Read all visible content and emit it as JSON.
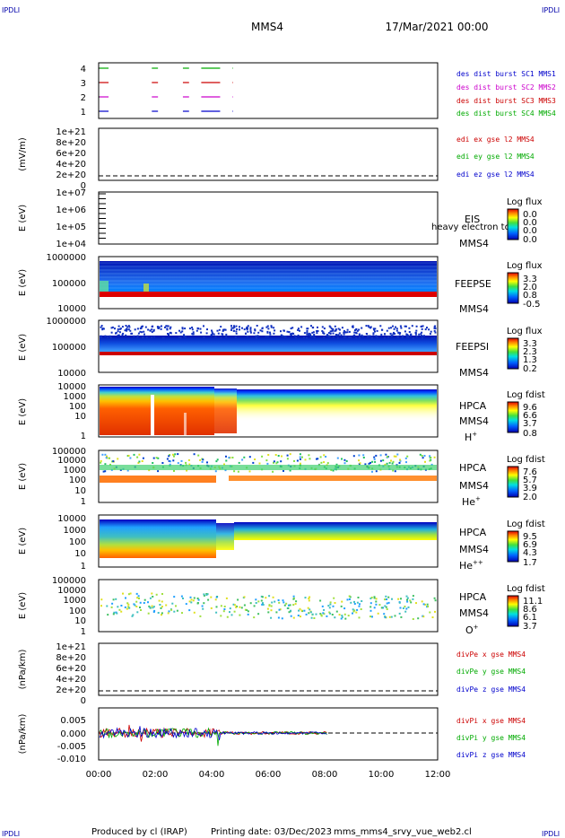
{
  "corner_labels": [
    "IPDLI",
    "IPDLI",
    "IPDLI",
    "IPDLI"
  ],
  "header": {
    "spacecraft": "MMS4",
    "datetime": "17/Mar/2021 00:00"
  },
  "footer": {
    "producer": "Produced by cl (IRAP)",
    "printing_date": "Printing date: 03/Dec/2023",
    "script": "mms_mms4_srvy_vue_web2.cl"
  },
  "colors": {
    "black": "#000000",
    "blue": "#0000cc",
    "red": "#cc0000",
    "green": "#00aa00",
    "magenta": "#cc00cc"
  },
  "chart_data": [
    {
      "type": "line",
      "panel": "des-burst",
      "yticks": [
        "1",
        "2",
        "3",
        "4"
      ],
      "series": [
        {
          "name": "des dist burst SC1 MMS1",
          "color": "#0000cc",
          "level": 1
        },
        {
          "name": "des dist burst SC2 MMS2",
          "color": "#cc00cc",
          "level": 2
        },
        {
          "name": "des dist burst SC3 MMS3",
          "color": "#cc0000",
          "level": 3
        },
        {
          "name": "des dist burst SC4 MMS4",
          "color": "#00aa00",
          "level": 4
        }
      ],
      "segments_hours": [
        [
          0.0,
          0.35
        ],
        [
          1.85,
          2.1
        ],
        [
          2.95,
          3.2
        ],
        [
          3.6,
          4.3
        ],
        [
          4.7,
          4.75
        ]
      ]
    },
    {
      "type": "line",
      "panel": "edi-e",
      "ylabel": "(mV/m)",
      "yticks": [
        "0",
        "2e+20",
        "4e+20",
        "6e+20",
        "8e+20",
        "1e+21"
      ],
      "series": [
        {
          "name": "edi ex gse l2 MMS4",
          "color": "#cc0000"
        },
        {
          "name": "edi ey gse l2 MMS4",
          "color": "#00aa00"
        },
        {
          "name": "edi ez gse l2 MMS4",
          "color": "#0000cc"
        }
      ]
    },
    {
      "type": "heatmap",
      "panel": "eis",
      "ylabel": "E (eV)",
      "yticks": [
        "1e+04",
        "1e+05",
        "1e+06",
        "1e+07"
      ],
      "labels": [
        "EIS",
        "MMS4"
      ],
      "overlay_text": "heavy electron to",
      "colorbar": {
        "title": "Log flux",
        "ticks": [
          "0.0",
          "0.0",
          "0.0",
          "0.0"
        ]
      }
    },
    {
      "type": "heatmap",
      "panel": "feeps-e",
      "ylabel": "E (eV)",
      "yticks": [
        "10000",
        "100000",
        "1000000"
      ],
      "labels": [
        "FEEPSE",
        "MMS4"
      ],
      "colorbar": {
        "title": "Log flux",
        "ticks": [
          "3.3",
          "2.0",
          "0.8",
          "-0.5"
        ]
      }
    },
    {
      "type": "heatmap",
      "panel": "feeps-i",
      "ylabel": "E (eV)",
      "yticks": [
        "10000",
        "100000",
        "1000000"
      ],
      "labels": [
        "FEEPSI",
        "MMS4"
      ],
      "colorbar": {
        "title": "Log flux",
        "ticks": [
          "3.3",
          "2.3",
          "1.3",
          "0.2"
        ]
      }
    },
    {
      "type": "heatmap",
      "panel": "hpca-h",
      "ylabel": "E (eV)",
      "yticks": [
        "1",
        "10",
        "100",
        "1000",
        "10000"
      ],
      "labels": [
        "HPCA",
        "MMS4"
      ],
      "species": "H",
      "charge": "+",
      "colorbar": {
        "title": "Log fdist",
        "ticks": [
          "9.6",
          "6.6",
          "3.7",
          "0.8"
        ]
      }
    },
    {
      "type": "heatmap",
      "panel": "hpca-he1",
      "ylabel": "E (eV)",
      "yticks": [
        "1",
        "10",
        "100",
        "1000",
        "10000",
        "100000"
      ],
      "labels": [
        "HPCA",
        "MMS4"
      ],
      "species": "He",
      "charge": "+",
      "colorbar": {
        "title": "Log fdist",
        "ticks": [
          "7.6",
          "5.7",
          "3.9",
          "2.0"
        ]
      }
    },
    {
      "type": "heatmap",
      "panel": "hpca-he2",
      "ylabel": "E (eV)",
      "yticks": [
        "1",
        "10",
        "100",
        "1000",
        "10000"
      ],
      "labels": [
        "HPCA",
        "MMS4"
      ],
      "species": "He",
      "charge": "++",
      "colorbar": {
        "title": "Log fdist",
        "ticks": [
          "9.5",
          "6.9",
          "4.3",
          "1.7"
        ]
      }
    },
    {
      "type": "heatmap",
      "panel": "hpca-o",
      "ylabel": "E (eV)",
      "yticks": [
        "1",
        "10",
        "100",
        "1000",
        "10000",
        "100000"
      ],
      "labels": [
        "HPCA",
        "MMS4"
      ],
      "species": "O",
      "charge": "+",
      "colorbar": {
        "title": "Log fdist",
        "ticks": [
          "11.1",
          "8.6",
          "6.1",
          "3.7"
        ]
      }
    },
    {
      "type": "line",
      "panel": "div-pe",
      "ylabel": "(nPa/km)",
      "yticks": [
        "0",
        "2e+20",
        "4e+20",
        "6e+20",
        "8e+20",
        "1e+21"
      ],
      "series": [
        {
          "name": "divPe x gse MMS4",
          "color": "#cc0000"
        },
        {
          "name": "divPe y gse MMS4",
          "color": "#00aa00"
        },
        {
          "name": "divPe z gse MMS4",
          "color": "#0000cc"
        }
      ]
    },
    {
      "type": "line",
      "panel": "div-pi",
      "ylabel": "(nPa/km)",
      "yticks": [
        "-0.010",
        "-0.005",
        "0.000",
        "0.005"
      ],
      "ylim": [
        -0.011,
        0.008
      ],
      "data_end_hours": 8.1,
      "series": [
        {
          "name": "divPi x gse MMS4",
          "color": "#cc0000"
        },
        {
          "name": "divPi y gse MMS4",
          "color": "#00aa00"
        },
        {
          "name": "divPi z gse MMS4",
          "color": "#0000cc"
        }
      ]
    }
  ],
  "xaxis": {
    "ticks": [
      "00:00",
      "02:00",
      "04:00",
      "06:00",
      "08:00",
      "10:00",
      "12:00"
    ],
    "xlim_hours": [
      0,
      12
    ]
  }
}
